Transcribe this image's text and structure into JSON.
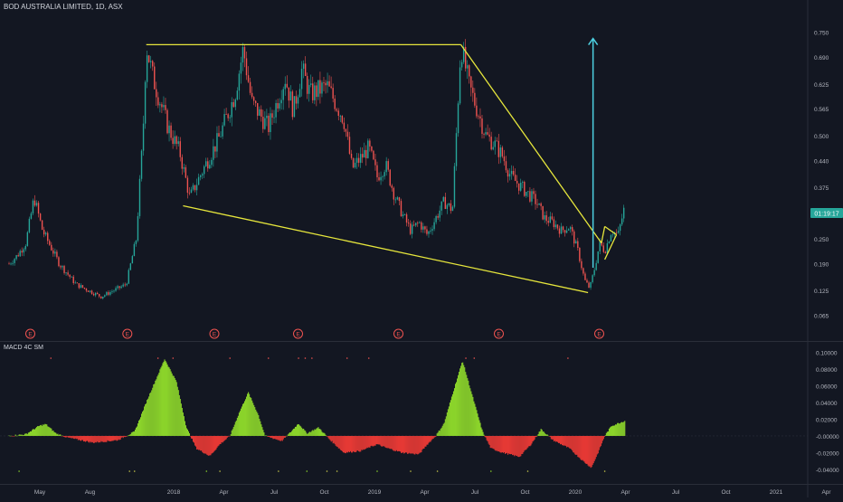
{
  "header": {
    "title": "BOD AUSTRALIA LIMITED, 1D, ASX"
  },
  "macd_panel": {
    "label": "MACD 4C SM"
  },
  "price_badge": {
    "text": "01:19:17",
    "color": "#26a69a"
  },
  "colors": {
    "background": "#131722",
    "candle_up": "#26a69a",
    "candle_down": "#ef5350",
    "trendline": "#e6e63c",
    "target_arrow": "#4dd0e1",
    "hist_positive": "#8bd32b",
    "hist_negative": "#e53935",
    "earnings_marker": "#ef5350"
  },
  "chart_data": [
    {
      "type": "candlestick",
      "title": "BOD AUSTRALIA LIMITED, 1D, ASX",
      "y_axis": {
        "ticks": [
          0.75,
          0.69,
          0.625,
          0.565,
          0.5,
          0.44,
          0.375,
          0.31,
          0.25,
          0.19,
          0.125,
          0.065
        ],
        "tick_labels": [
          "0.750",
          "0.690",
          "0.625",
          "0.565",
          "0.500",
          "0.440",
          "",
          "",
          "0.250",
          "0.190",
          "0.125",
          "0.065"
        ],
        "ylim": [
          0.04,
          0.78
        ],
        "hidden_tick_note": "",
        "extra_label": "0.375",
        "extra_label_value": 0.375
      },
      "x_axis": {
        "tick_labels": [
          "May",
          "Aug",
          "2018",
          "Apr",
          "Jul",
          "Oct",
          "2019",
          "Apr",
          "Jul",
          "Oct",
          "2020",
          "Apr",
          "Jul",
          "Oct",
          "2021",
          "Apr",
          "Jul"
        ],
        "tick_months": [
          0,
          3,
          8,
          11,
          14,
          17,
          20,
          23,
          26,
          29,
          32,
          35,
          38,
          41,
          44,
          47,
          50
        ]
      },
      "price_path": [
        [
          0,
          0.19
        ],
        [
          0.5,
          0.21
        ],
        [
          1.0,
          0.24
        ],
        [
          1.5,
          0.35
        ],
        [
          2.0,
          0.27
        ],
        [
          3.0,
          0.19
        ],
        [
          4.0,
          0.14
        ],
        [
          5.5,
          0.11
        ],
        [
          6.5,
          0.13
        ],
        [
          7.0,
          0.14
        ],
        [
          7.6,
          0.25
        ],
        [
          8.0,
          0.5
        ],
        [
          8.2,
          0.72
        ],
        [
          8.6,
          0.64
        ],
        [
          9.5,
          0.52
        ],
        [
          10.2,
          0.46
        ],
        [
          10.8,
          0.35
        ],
        [
          11.5,
          0.41
        ],
        [
          12.5,
          0.49
        ],
        [
          13.5,
          0.6
        ],
        [
          14.0,
          0.71
        ],
        [
          14.5,
          0.58
        ],
        [
          15.5,
          0.52
        ],
        [
          16.5,
          0.64
        ],
        [
          17.0,
          0.56
        ],
        [
          17.5,
          0.66
        ],
        [
          18.0,
          0.6
        ],
        [
          19.0,
          0.62
        ],
        [
          20.0,
          0.54
        ],
        [
          20.5,
          0.42
        ],
        [
          21.5,
          0.47
        ],
        [
          22.0,
          0.4
        ],
        [
          22.5,
          0.43
        ],
        [
          23.0,
          0.36
        ],
        [
          23.5,
          0.31
        ],
        [
          24.0,
          0.27
        ],
        [
          24.5,
          0.29
        ],
        [
          25.0,
          0.26
        ],
        [
          26.0,
          0.34
        ],
        [
          26.5,
          0.32
        ],
        [
          27.0,
          0.72
        ],
        [
          27.5,
          0.62
        ],
        [
          28.0,
          0.56
        ],
        [
          28.5,
          0.5
        ],
        [
          29.0,
          0.48
        ],
        [
          29.5,
          0.45
        ],
        [
          30.0,
          0.4
        ],
        [
          30.5,
          0.38
        ],
        [
          31.0,
          0.36
        ],
        [
          31.5,
          0.34
        ],
        [
          32.0,
          0.3
        ],
        [
          32.5,
          0.29
        ],
        [
          33.0,
          0.27
        ],
        [
          33.5,
          0.28
        ],
        [
          34.0,
          0.22
        ],
        [
          34.4,
          0.15
        ],
        [
          34.7,
          0.13
        ],
        [
          35.0,
          0.18
        ],
        [
          35.3,
          0.24
        ],
        [
          35.6,
          0.22
        ],
        [
          36.0,
          0.27
        ],
        [
          36.4,
          0.26
        ],
        [
          36.8,
          0.33
        ]
      ],
      "trendlines": [
        {
          "name": "top",
          "points": [
            [
              8.2,
              0.72
            ],
            [
              27.0,
              0.72
            ]
          ]
        },
        {
          "name": "bottom",
          "points": [
            [
              10.4,
              0.33
            ],
            [
              34.6,
              0.12
            ]
          ]
        },
        {
          "name": "descending",
          "points": [
            [
              27.0,
              0.72
            ],
            [
              35.4,
              0.24
            ]
          ]
        },
        {
          "name": "wedge-a",
          "points": [
            [
              35.4,
              0.24
            ],
            [
              35.6,
              0.28
            ]
          ]
        },
        {
          "name": "wedge-b",
          "points": [
            [
              35.6,
              0.28
            ],
            [
              36.3,
              0.26
            ]
          ]
        },
        {
          "name": "wedge-c",
          "points": [
            [
              35.6,
              0.2
            ],
            [
              36.3,
              0.26
            ]
          ]
        }
      ],
      "target_arrow": {
        "x": 34.9,
        "from": 0.18,
        "to": 0.735
      },
      "earnings_markers": {
        "label": "E",
        "x": [
          1.0,
          6.8,
          12.0,
          17.0,
          23.0,
          29.0,
          35.0
        ]
      }
    },
    {
      "type": "area",
      "title": "MACD 4C SM",
      "y_axis": {
        "ticks": [
          0.1,
          0.08,
          0.06,
          0.04,
          0.02,
          0.0,
          -0.02,
          -0.04
        ],
        "tick_labels": [
          "0.10000",
          "0.08000",
          "0.06000",
          "0.04000",
          "0.02000",
          "-0.00000",
          "-0.02000",
          "-0.04000"
        ],
        "ylim": [
          -0.052,
          0.106
        ]
      },
      "histogram_path": [
        [
          0,
          0.0
        ],
        [
          1.0,
          0.002
        ],
        [
          1.8,
          0.012
        ],
        [
          2.2,
          0.014
        ],
        [
          2.8,
          0.003
        ],
        [
          3.5,
          -0.002
        ],
        [
          5.0,
          -0.008
        ],
        [
          6.5,
          -0.005
        ],
        [
          7.5,
          0.005
        ],
        [
          8.3,
          0.045
        ],
        [
          9.3,
          0.092
        ],
        [
          10.0,
          0.065
        ],
        [
          10.6,
          0.01
        ],
        [
          11.2,
          -0.015
        ],
        [
          12.0,
          -0.024
        ],
        [
          12.6,
          -0.01
        ],
        [
          13.2,
          0.0
        ],
        [
          13.8,
          0.03
        ],
        [
          14.3,
          0.052
        ],
        [
          14.9,
          0.025
        ],
        [
          15.3,
          0.0
        ],
        [
          16.3,
          -0.006
        ],
        [
          16.8,
          0.004
        ],
        [
          17.3,
          0.015
        ],
        [
          17.8,
          0.003
        ],
        [
          18.5,
          0.01
        ],
        [
          19.2,
          -0.005
        ],
        [
          20.0,
          -0.02
        ],
        [
          21.0,
          -0.018
        ],
        [
          22.0,
          -0.01
        ],
        [
          22.5,
          -0.014
        ],
        [
          23.5,
          -0.02
        ],
        [
          24.5,
          -0.022
        ],
        [
          25.0,
          -0.01
        ],
        [
          25.5,
          0.0
        ],
        [
          26.0,
          0.015
        ],
        [
          26.5,
          0.05
        ],
        [
          27.1,
          0.09
        ],
        [
          27.8,
          0.04
        ],
        [
          28.3,
          0.005
        ],
        [
          28.8,
          -0.015
        ],
        [
          29.5,
          -0.02
        ],
        [
          30.5,
          -0.025
        ],
        [
          31.2,
          -0.01
        ],
        [
          31.8,
          0.008
        ],
        [
          32.5,
          -0.005
        ],
        [
          33.5,
          -0.015
        ],
        [
          34.3,
          -0.03
        ],
        [
          34.8,
          -0.038
        ],
        [
          35.2,
          -0.02
        ],
        [
          35.6,
          0.0
        ],
        [
          36.0,
          0.012
        ],
        [
          36.8,
          0.018
        ]
      ]
    }
  ]
}
